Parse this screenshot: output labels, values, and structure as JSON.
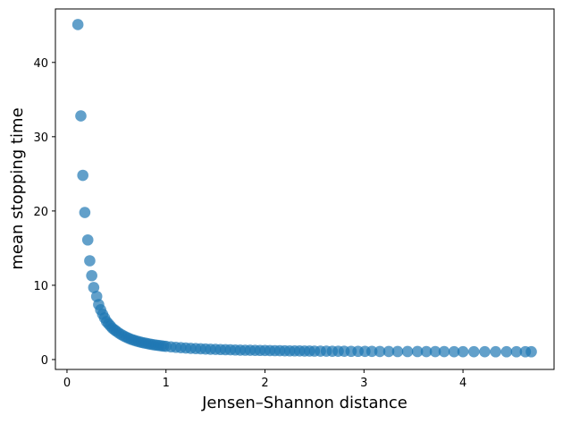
{
  "chart_data": {
    "type": "scatter",
    "title": "",
    "xlabel": "Jensen–Shannon distance",
    "ylabel": "mean stopping time",
    "xlim": [
      -0.117,
      4.92
    ],
    "ylim": [
      -1.33,
      47.2
    ],
    "xticks": [
      0,
      1,
      2,
      3,
      4
    ],
    "yticks": [
      0,
      10,
      20,
      30,
      40
    ],
    "grid": false,
    "legend": "none",
    "color": "#1f77b4",
    "marker_alpha": 0.7,
    "x": [
      0.11,
      0.14,
      0.16,
      0.18,
      0.21,
      0.23,
      0.25,
      0.27,
      0.3,
      0.32,
      0.34,
      0.36,
      0.38,
      0.4,
      0.42,
      0.44,
      0.46,
      0.48,
      0.5,
      0.525,
      0.55,
      0.575,
      0.6,
      0.625,
      0.65,
      0.675,
      0.7,
      0.725,
      0.75,
      0.775,
      0.8,
      0.825,
      0.85,
      0.875,
      0.9,
      0.925,
      0.95,
      0.975,
      1.0,
      1.05,
      1.1,
      1.15,
      1.2,
      1.25,
      1.3,
      1.35,
      1.4,
      1.45,
      1.5,
      1.55,
      1.6,
      1.65,
      1.7,
      1.75,
      1.8,
      1.85,
      1.9,
      1.95,
      2.0,
      2.05,
      2.1,
      2.15,
      2.2,
      2.25,
      2.3,
      2.35,
      2.4,
      2.45,
      2.5,
      2.56,
      2.62,
      2.68,
      2.74,
      2.8,
      2.87,
      2.94,
      3.01,
      3.08,
      3.16,
      3.25,
      3.34,
      3.44,
      3.54,
      3.63,
      3.72,
      3.81,
      3.91,
      4.0,
      4.11,
      4.22,
      4.33,
      4.44,
      4.54,
      4.63,
      4.69
    ],
    "y": [
      45.1,
      32.8,
      24.8,
      19.8,
      16.1,
      13.3,
      11.3,
      9.7,
      8.5,
      7.4,
      6.7,
      6.1,
      5.6,
      5.1,
      4.8,
      4.5,
      4.2,
      4.0,
      3.8,
      3.56,
      3.35,
      3.16,
      3.0,
      2.85,
      2.72,
      2.61,
      2.5,
      2.41,
      2.32,
      2.25,
      2.18,
      2.11,
      2.05,
      1.99,
      1.94,
      1.9,
      1.85,
      1.81,
      1.78,
      1.71,
      1.65,
      1.6,
      1.55,
      1.51,
      1.48,
      1.45,
      1.42,
      1.39,
      1.37,
      1.35,
      1.33,
      1.31,
      1.29,
      1.27,
      1.26,
      1.25,
      1.24,
      1.23,
      1.22,
      1.21,
      1.2,
      1.19,
      1.18,
      1.17,
      1.17,
      1.16,
      1.15,
      1.15,
      1.14,
      1.13,
      1.13,
      1.12,
      1.12,
      1.12,
      1.11,
      1.11,
      1.1,
      1.1,
      1.09,
      1.09,
      1.08,
      1.08,
      1.08,
      1.07,
      1.07,
      1.07,
      1.06,
      1.06,
      1.06,
      1.06,
      1.05,
      1.05,
      1.05,
      1.05,
      1.05
    ]
  }
}
